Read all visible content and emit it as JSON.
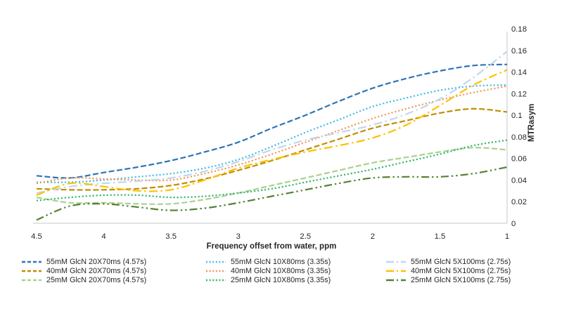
{
  "chart_data": {
    "type": "line",
    "title": "",
    "xlabel": "Frequency offset from water, ppm",
    "ylabel": "MTRasym",
    "xlim": [
      4.5,
      1
    ],
    "ylim": [
      0,
      0.18
    ],
    "x_axis_reversed": true,
    "grid": false,
    "legend_position": "bottom",
    "x_ticks": [
      4.5,
      4,
      3.5,
      3,
      2.5,
      2,
      1.5,
      1
    ],
    "x_tick_labels": [
      "4.5",
      "4",
      "3.5",
      "3",
      "2.5",
      "2",
      "1.5",
      "1"
    ],
    "y_ticks": [
      0,
      0.02,
      0.04,
      0.06,
      0.08,
      0.1,
      0.12,
      0.14,
      0.16,
      0.18
    ],
    "y_tick_labels": [
      "0",
      "0.02",
      "0.04",
      "0.06",
      "0.08",
      "0.1",
      "0.12",
      "0.14",
      "0.16",
      "0.18"
    ],
    "x": [
      4.5,
      4.25,
      4,
      3.75,
      3.5,
      3.25,
      3,
      2.75,
      2.5,
      2.25,
      2,
      1.75,
      1.5,
      1.25,
      1
    ],
    "series": [
      {
        "name": "55mM GlcN 20X70ms (4.57s)",
        "color": "#2E75B6",
        "style": "dashed",
        "values": [
          0.044,
          0.042,
          0.047,
          0.052,
          0.058,
          0.066,
          0.075,
          0.088,
          0.1,
          0.113,
          0.125,
          0.134,
          0.141,
          0.146,
          0.147
        ]
      },
      {
        "name": "40mM GlcN 20X70ms (4.57s)",
        "color": "#BF8F00",
        "style": "dashed",
        "values": [
          0.032,
          0.031,
          0.031,
          0.032,
          0.035,
          0.041,
          0.049,
          0.058,
          0.068,
          0.078,
          0.088,
          0.095,
          0.102,
          0.106,
          0.103
        ]
      },
      {
        "name": "25mM GlcN 20X70ms (4.57s)",
        "color": "#A9D18E",
        "style": "dashed",
        "values": [
          0.024,
          0.019,
          0.019,
          0.018,
          0.018,
          0.022,
          0.028,
          0.035,
          0.042,
          0.049,
          0.056,
          0.061,
          0.066,
          0.07,
          0.068
        ]
      },
      {
        "name": "55mM GlcN 10X80ms (3.35s)",
        "color": "#45BDE8",
        "style": "dotted",
        "values": [
          0.038,
          0.038,
          0.04,
          0.043,
          0.046,
          0.051,
          0.059,
          0.071,
          0.084,
          0.096,
          0.108,
          0.116,
          0.123,
          0.127,
          0.128
        ]
      },
      {
        "name": "40mM GlcN 10X80ms (3.35s)",
        "color": "#F0975C",
        "style": "dotted",
        "values": [
          0.037,
          0.042,
          0.041,
          0.04,
          0.04,
          0.046,
          0.054,
          0.064,
          0.075,
          0.086,
          0.097,
          0.106,
          0.114,
          0.121,
          0.127
        ]
      },
      {
        "name": "25mM GlcN 10X80ms (3.35s)",
        "color": "#33B56A",
        "style": "dotted",
        "values": [
          0.021,
          0.024,
          0.026,
          0.026,
          0.024,
          0.025,
          0.028,
          0.032,
          0.038,
          0.044,
          0.05,
          0.057,
          0.064,
          0.072,
          0.077
        ]
      },
      {
        "name": "55mM GlcN 5X100ms (2.75s)",
        "color": "#BDD7EE",
        "style": "longdashdot",
        "values": [
          0.028,
          0.034,
          0.037,
          0.039,
          0.042,
          0.048,
          0.057,
          0.068,
          0.077,
          0.084,
          0.091,
          0.101,
          0.115,
          0.135,
          0.159
        ]
      },
      {
        "name": "40mM GlcN 5X100ms (2.75s)",
        "color": "#FFC000",
        "style": "longdashdot",
        "values": [
          0.026,
          0.037,
          0.034,
          0.03,
          0.031,
          0.04,
          0.051,
          0.059,
          0.066,
          0.072,
          0.079,
          0.091,
          0.109,
          0.128,
          0.142
        ]
      },
      {
        "name": "25mM GlcN 5X100ms (2.75s)",
        "color": "#548235",
        "style": "longdashdotdot",
        "values": [
          0.003,
          0.016,
          0.018,
          0.015,
          0.012,
          0.014,
          0.019,
          0.025,
          0.031,
          0.037,
          0.042,
          0.043,
          0.043,
          0.046,
          0.052
        ]
      }
    ],
    "axis_color": "#C3C7CB"
  }
}
